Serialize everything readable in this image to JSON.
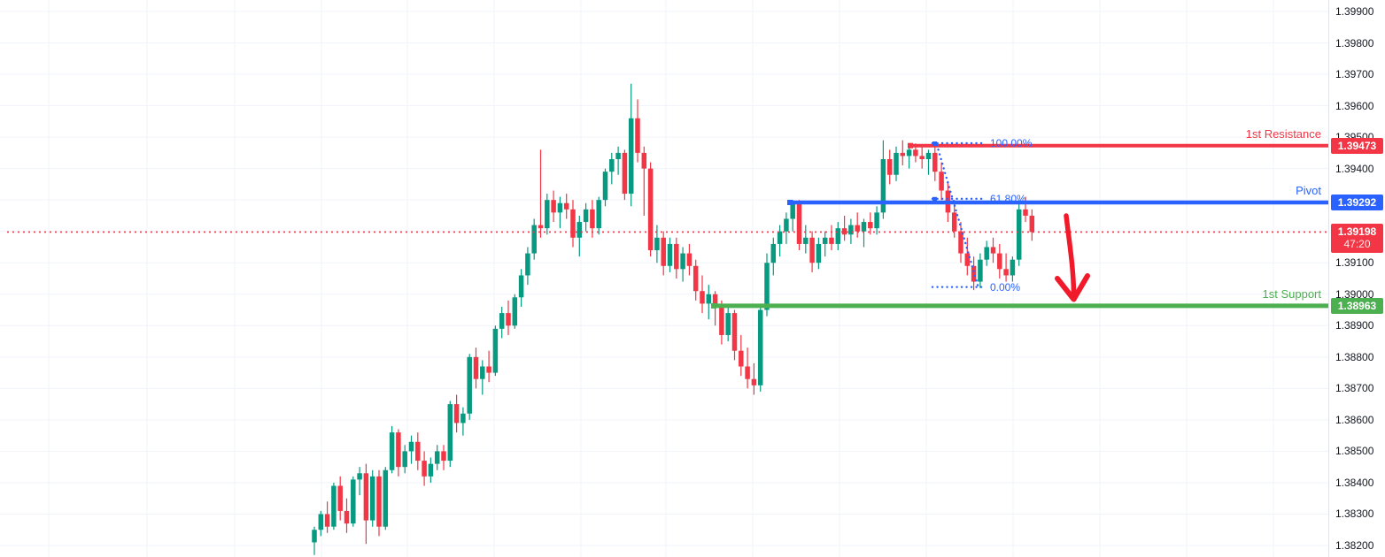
{
  "window": {
    "app": "trading-chart"
  },
  "price_scale": {
    "ticks": [
      "1.39900",
      "1.39800",
      "1.39700",
      "1.39600",
      "1.39500",
      "1.39400",
      "1.39300",
      "1.39200",
      "1.39100",
      "1.39000",
      "1.38900",
      "1.38800",
      "1.38700",
      "1.38600",
      "1.38500",
      "1.38400",
      "1.38300",
      "1.38200"
    ],
    "tick_values": [
      1.399,
      1.398,
      1.397,
      1.396,
      1.395,
      1.394,
      1.393,
      1.392,
      1.391,
      1.39,
      1.389,
      1.388,
      1.387,
      1.386,
      1.385,
      1.384,
      1.383,
      1.382
    ],
    "text_color": "#131722"
  },
  "levels": [
    {
      "id": "resistance",
      "label": "1st Resistance",
      "price": 1.39473,
      "price_label": "1.39473",
      "color": "#F23645"
    },
    {
      "id": "pivot",
      "label": "Pivot",
      "price": 1.39292,
      "price_label": "1.39292",
      "color": "#2962FF"
    },
    {
      "id": "support",
      "label": "1st Support",
      "price": 1.38963,
      "price_label": "1.38963",
      "color": "#4CAF50"
    }
  ],
  "current_price": {
    "value": 1.39198,
    "price_label": "1.39198",
    "countdown": "47:20",
    "color": "#F23645"
  },
  "fib": {
    "color": "#2962FF",
    "levels": [
      {
        "pct_label": "100.00%",
        "price": 1.39475
      },
      {
        "pct_label": "61.80%",
        "price": 1.39301
      },
      {
        "pct_label": "0.00%",
        "price": 1.3902
      }
    ],
    "anchor_high": 1.39475,
    "anchor_low": 1.3902
  },
  "arrow": {
    "color": "#F01A2B",
    "direction": "down"
  },
  "chart_data": {
    "type": "candlestick",
    "up_color": "#089981",
    "down_color": "#F23645",
    "grid_color": "#F0F3FA",
    "price_range_top": 1.399,
    "price_range_bottom": 1.382,
    "candles": [
      [
        1.3821,
        1.3826,
        1.3817,
        1.3825
      ],
      [
        1.3825,
        1.3831,
        1.3823,
        1.383
      ],
      [
        1.383,
        1.3834,
        1.3824,
        1.3826
      ],
      [
        1.3826,
        1.384,
        1.3825,
        1.3839
      ],
      [
        1.3839,
        1.3842,
        1.3828,
        1.3831
      ],
      [
        1.3831,
        1.3835,
        1.3824,
        1.3827
      ],
      [
        1.3827,
        1.3842,
        1.3826,
        1.3841
      ],
      [
        1.3841,
        1.3845,
        1.3836,
        1.3843
      ],
      [
        1.3843,
        1.3846,
        1.38205,
        1.3828
      ],
      [
        1.3828,
        1.3844,
        1.3826,
        1.3842
      ],
      [
        1.3842,
        1.3844,
        1.3823,
        1.3826
      ],
      [
        1.3826,
        1.3845,
        1.3825,
        1.3844
      ],
      [
        1.3844,
        1.3858,
        1.3843,
        1.3856
      ],
      [
        1.3856,
        1.3857,
        1.3842,
        1.3845
      ],
      [
        1.3845,
        1.3852,
        1.3843,
        1.385
      ],
      [
        1.385,
        1.3855,
        1.3846,
        1.3853
      ],
      [
        1.3853,
        1.3856,
        1.3844,
        1.3847
      ],
      [
        1.3847,
        1.385,
        1.3839,
        1.3842
      ],
      [
        1.3842,
        1.3848,
        1.384,
        1.3846
      ],
      [
        1.3846,
        1.3852,
        1.3844,
        1.385
      ],
      [
        1.385,
        1.3852,
        1.3844,
        1.3847
      ],
      [
        1.3847,
        1.3866,
        1.3845,
        1.3865
      ],
      [
        1.3865,
        1.3868,
        1.3856,
        1.3859
      ],
      [
        1.3859,
        1.3864,
        1.3855,
        1.3862
      ],
      [
        1.3862,
        1.3881,
        1.386,
        1.388
      ],
      [
        1.388,
        1.3883,
        1.387,
        1.3873
      ],
      [
        1.3873,
        1.3879,
        1.3868,
        1.3877
      ],
      [
        1.3877,
        1.3882,
        1.3872,
        1.3875
      ],
      [
        1.3875,
        1.389,
        1.3874,
        1.3889
      ],
      [
        1.3889,
        1.3896,
        1.3886,
        1.3894
      ],
      [
        1.3894,
        1.3898,
        1.3887,
        1.389
      ],
      [
        1.389,
        1.39,
        1.3889,
        1.3899
      ],
      [
        1.3899,
        1.3908,
        1.3896,
        1.3906
      ],
      [
        1.3906,
        1.3915,
        1.3903,
        1.3913
      ],
      [
        1.3913,
        1.3924,
        1.3911,
        1.3922
      ],
      [
        1.3922,
        1.3946,
        1.3918,
        1.3921
      ],
      [
        1.3921,
        1.3932,
        1.3919,
        1.393
      ],
      [
        1.393,
        1.3933,
        1.3923,
        1.3926
      ],
      [
        1.3926,
        1.3931,
        1.3921,
        1.3929
      ],
      [
        1.3929,
        1.3932,
        1.3924,
        1.3927
      ],
      [
        1.3927,
        1.393,
        1.3915,
        1.3918
      ],
      [
        1.3918,
        1.3925,
        1.3912,
        1.3923
      ],
      [
        1.3923,
        1.3929,
        1.392,
        1.3927
      ],
      [
        1.3927,
        1.393,
        1.3918,
        1.3921
      ],
      [
        1.3921,
        1.3931,
        1.3919,
        1.393
      ],
      [
        1.393,
        1.394,
        1.3928,
        1.3939
      ],
      [
        1.3939,
        1.3945,
        1.3935,
        1.3943
      ],
      [
        1.3943,
        1.3947,
        1.3938,
        1.3945
      ],
      [
        1.3945,
        1.3946,
        1.393,
        1.3932
      ],
      [
        1.3932,
        1.3967,
        1.3928,
        1.3956
      ],
      [
        1.3956,
        1.3962,
        1.3942,
        1.3945
      ],
      [
        1.3945,
        1.3947,
        1.3925,
        1.394
      ],
      [
        1.394,
        1.3942,
        1.3912,
        1.3914
      ],
      [
        1.3914,
        1.3922,
        1.391,
        1.3918
      ],
      [
        1.3918,
        1.392,
        1.3906,
        1.3909
      ],
      [
        1.3909,
        1.3918,
        1.3907,
        1.3916
      ],
      [
        1.3916,
        1.3918,
        1.3905,
        1.3908
      ],
      [
        1.3908,
        1.3915,
        1.3904,
        1.3913
      ],
      [
        1.3913,
        1.3916,
        1.3906,
        1.3909
      ],
      [
        1.3909,
        1.3911,
        1.3898,
        1.3901
      ],
      [
        1.3901,
        1.3906,
        1.3894,
        1.3897
      ],
      [
        1.3897,
        1.3903,
        1.3892,
        1.39
      ],
      [
        1.39,
        1.3901,
        1.389,
        1.3896
      ],
      [
        1.3896,
        1.3898,
        1.3884,
        1.3887
      ],
      [
        1.3887,
        1.3896,
        1.3885,
        1.3894
      ],
      [
        1.3894,
        1.3895,
        1.3879,
        1.3882
      ],
      [
        1.3882,
        1.3887,
        1.3874,
        1.3877
      ],
      [
        1.3877,
        1.3883,
        1.387,
        1.3873
      ],
      [
        1.3873,
        1.3878,
        1.3868,
        1.3871
      ],
      [
        1.3871,
        1.3897,
        1.3869,
        1.3895
      ],
      [
        1.3895,
        1.3913,
        1.3893,
        1.391
      ],
      [
        1.391,
        1.3918,
        1.3906,
        1.3916
      ],
      [
        1.3916,
        1.3922,
        1.3912,
        1.392
      ],
      [
        1.392,
        1.3926,
        1.3916,
        1.3924
      ],
      [
        1.3924,
        1.393,
        1.392,
        1.3929
      ],
      [
        1.3929,
        1.393,
        1.3914,
        1.3916
      ],
      [
        1.3916,
        1.3922,
        1.3913,
        1.3918
      ],
      [
        1.3918,
        1.392,
        1.3907,
        1.391
      ],
      [
        1.391,
        1.3918,
        1.3908,
        1.3916
      ],
      [
        1.3916,
        1.392,
        1.3912,
        1.3918
      ],
      [
        1.3918,
        1.3922,
        1.3914,
        1.3916
      ],
      [
        1.3916,
        1.3923,
        1.3914,
        1.3921
      ],
      [
        1.3921,
        1.3925,
        1.3917,
        1.3919
      ],
      [
        1.3919,
        1.3924,
        1.3916,
        1.3922
      ],
      [
        1.3922,
        1.3926,
        1.3918,
        1.392
      ],
      [
        1.392,
        1.3924,
        1.3915,
        1.3923
      ],
      [
        1.3923,
        1.3926,
        1.3919,
        1.3921
      ],
      [
        1.3921,
        1.3928,
        1.3919,
        1.3926
      ],
      [
        1.3926,
        1.3949,
        1.3924,
        1.3943
      ],
      [
        1.3943,
        1.3946,
        1.3935,
        1.3938
      ],
      [
        1.3938,
        1.3947,
        1.3936,
        1.3945
      ],
      [
        1.3945,
        1.3949,
        1.3941,
        1.3944
      ],
      [
        1.3944,
        1.3947,
        1.394,
        1.3946
      ],
      [
        1.3946,
        1.3948,
        1.3942,
        1.3944
      ],
      [
        1.3944,
        1.3947,
        1.394,
        1.3943
      ],
      [
        1.3943,
        1.3946,
        1.3938,
        1.3945
      ],
      [
        1.3945,
        1.39475,
        1.3936,
        1.3939
      ],
      [
        1.3939,
        1.3942,
        1.393,
        1.3933
      ],
      [
        1.3933,
        1.3936,
        1.3923,
        1.3926
      ],
      [
        1.3926,
        1.393,
        1.3918,
        1.392
      ],
      [
        1.392,
        1.3923,
        1.391,
        1.3913
      ],
      [
        1.3913,
        1.3918,
        1.3906,
        1.3909
      ],
      [
        1.3909,
        1.3912,
        1.39013,
        1.3904
      ],
      [
        1.3904,
        1.3913,
        1.3902,
        1.3911
      ],
      [
        1.3911,
        1.3917,
        1.3909,
        1.3915
      ],
      [
        1.3915,
        1.3918,
        1.391,
        1.3913
      ],
      [
        1.3913,
        1.3916,
        1.3905,
        1.3908
      ],
      [
        1.3908,
        1.3913,
        1.3904,
        1.3906
      ],
      [
        1.3906,
        1.3912,
        1.3904,
        1.3911
      ],
      [
        1.3911,
        1.393,
        1.3909,
        1.3927
      ],
      [
        1.3927,
        1.3931,
        1.3923,
        1.3925
      ],
      [
        1.3925,
        1.3927,
        1.3917,
        1.39198
      ]
    ]
  }
}
